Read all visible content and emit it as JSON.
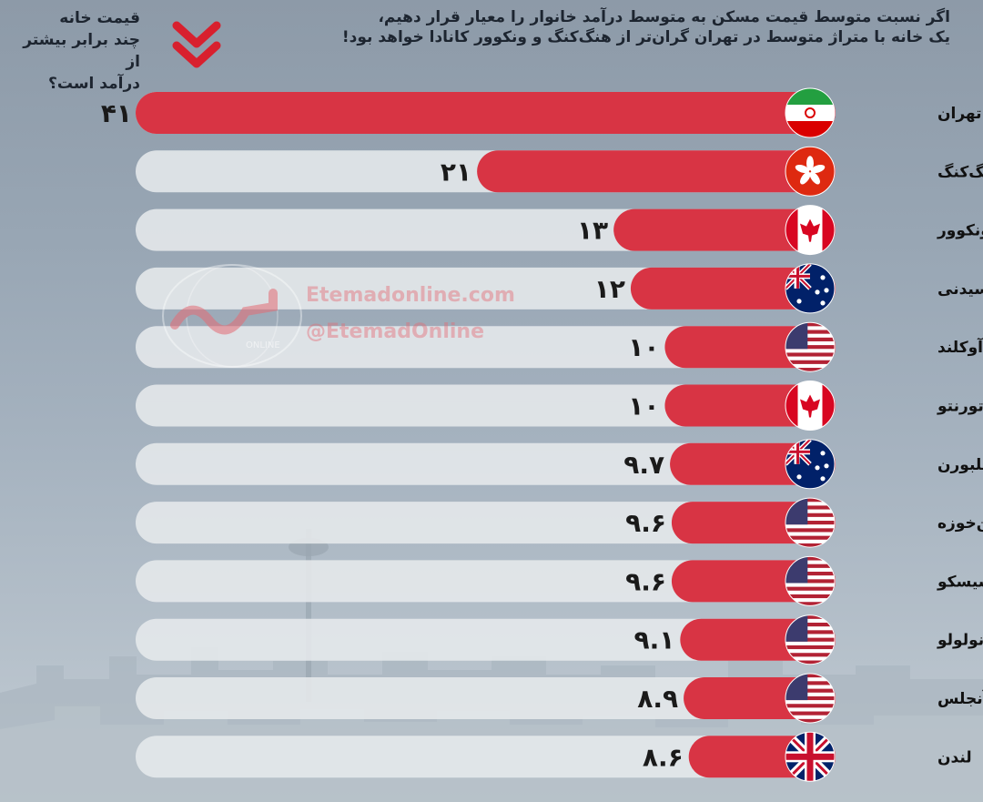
{
  "header": {
    "title_line1": "اگر نسبت متوسط قیمت مسکن به متوسط درآمد خانوار را معیار قرار دهیم،",
    "title_line2": "یک خانه با متراژ متوسط در تهران گران‌تر از هنگ‌کنگ و ونکوور کانادا خواهد بود!",
    "corner_line1": "قیمت خانه",
    "corner_line2": "چند برابر بیشتر از",
    "corner_line3": "درآمد است؟"
  },
  "watermark": {
    "site": "Etemadonline.com",
    "handle": "@EtemadOnline",
    "logo_sub": "ONLINE"
  },
  "colors": {
    "bar": "#d83444",
    "track": "#e6e9ec",
    "accent": "#d8202e"
  },
  "chart_data": {
    "type": "bar",
    "orientation": "horizontal",
    "categories": [
      "تهران",
      "هنگ‌کنگ",
      "ونکوور",
      "سیدنی",
      "آوکلند",
      "تورنتو",
      "ملبورن",
      "سن‌خوزه",
      "سان‌فرانسیسکو",
      "هونولولو",
      "لس‌آنجلس",
      "لندن"
    ],
    "values": [
      41,
      21,
      13,
      12,
      10,
      10,
      9.7,
      9.6,
      9.6,
      9.1,
      8.9,
      8.6
    ],
    "value_labels": [
      "۴۱",
      "۲۱",
      "۱۳",
      "۱۲",
      "۱۰",
      "۱۰",
      "۹.۷",
      "۹.۶",
      "۹.۶",
      "۹.۱",
      "۸.۹",
      "۸.۶"
    ],
    "flags": [
      "iran-flag-icon",
      "hong-kong-flag-icon",
      "canada-flag-icon",
      "australia-flag-icon",
      "usa-flag-icon",
      "canada-flag-icon",
      "australia-flag-icon",
      "usa-flag-icon",
      "usa-flag-icon",
      "usa-flag-icon",
      "usa-flag-icon",
      "uk-flag-icon"
    ],
    "xlim": [
      0,
      41
    ],
    "grid": false,
    "legend": "none"
  }
}
